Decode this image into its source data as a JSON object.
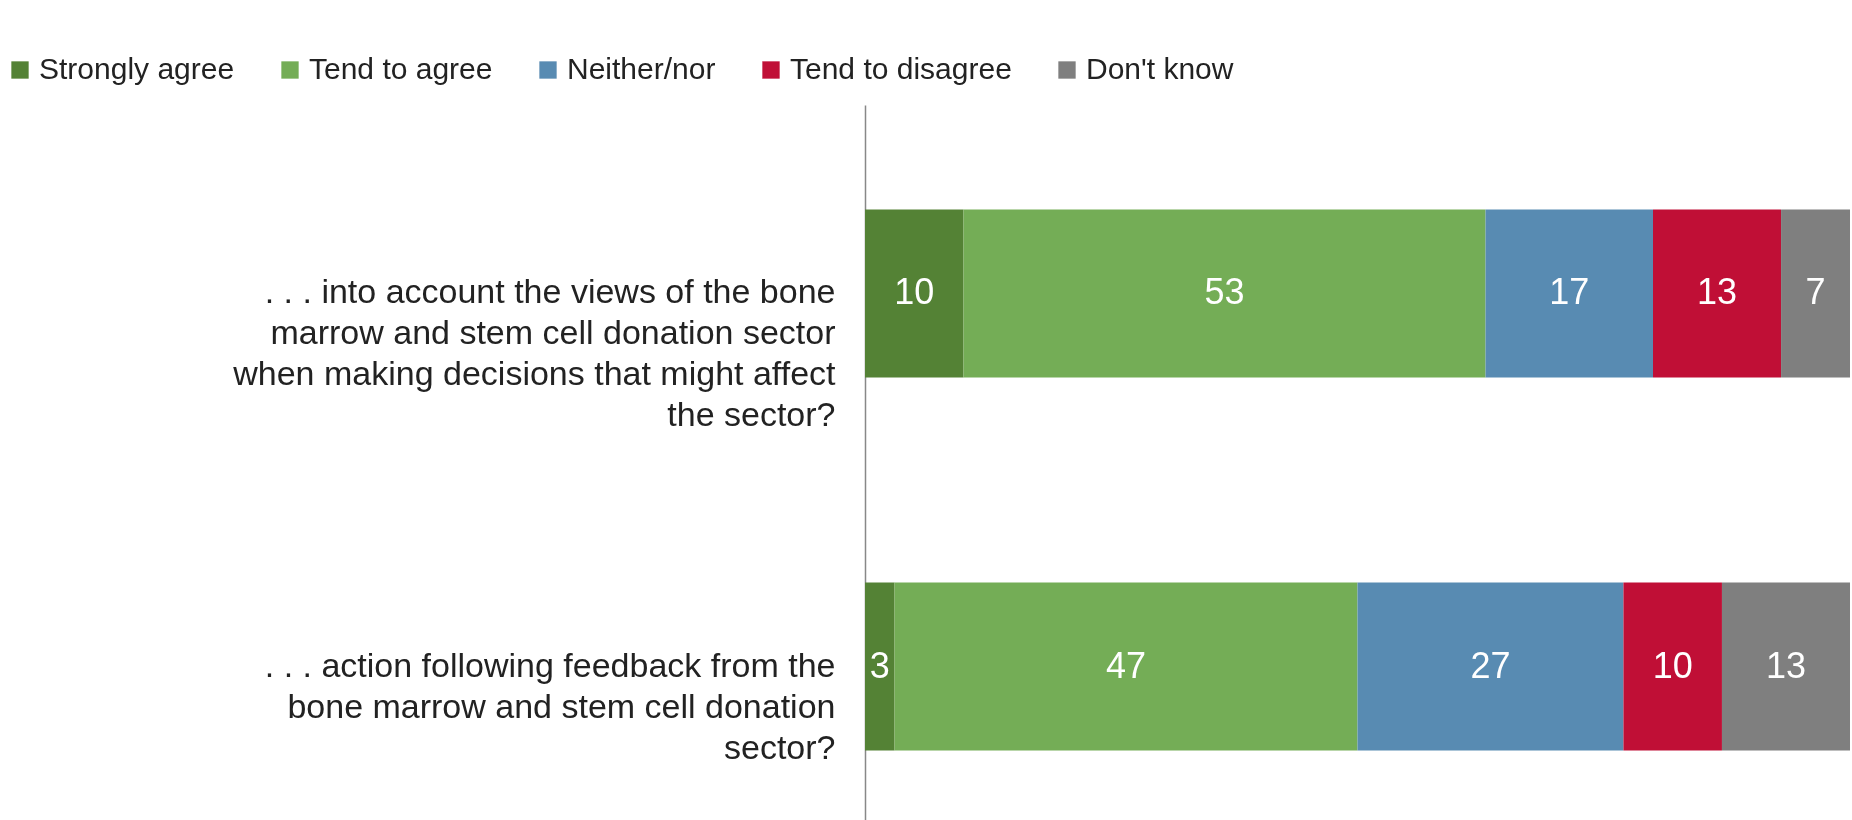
{
  "chart_data": {
    "type": "bar",
    "orientation": "horizontal",
    "stacked": true,
    "data_labels": true,
    "legend": "top",
    "categories": [
      ". . . into account the views of the bone marrow and stem cell donation sector when making decisions that might affect the sector?",
      ". . . action following feedback from the bone marrow and stem cell donation sector?"
    ],
    "series": [
      {
        "name": "Strongly agree",
        "color": "#548235",
        "values": [
          10,
          3
        ]
      },
      {
        "name": "Tend to agree",
        "color": "#74ad56",
        "values": [
          53,
          47
        ]
      },
      {
        "name": "Neither/nor",
        "color": "#588bb2",
        "values": [
          17,
          27
        ]
      },
      {
        "name": "Tend to disagree",
        "color": "#c00f36",
        "values": [
          13,
          10
        ]
      },
      {
        "name": "Don't know",
        "color": "#7f7f7f",
        "values": [
          7,
          13
        ]
      }
    ]
  }
}
